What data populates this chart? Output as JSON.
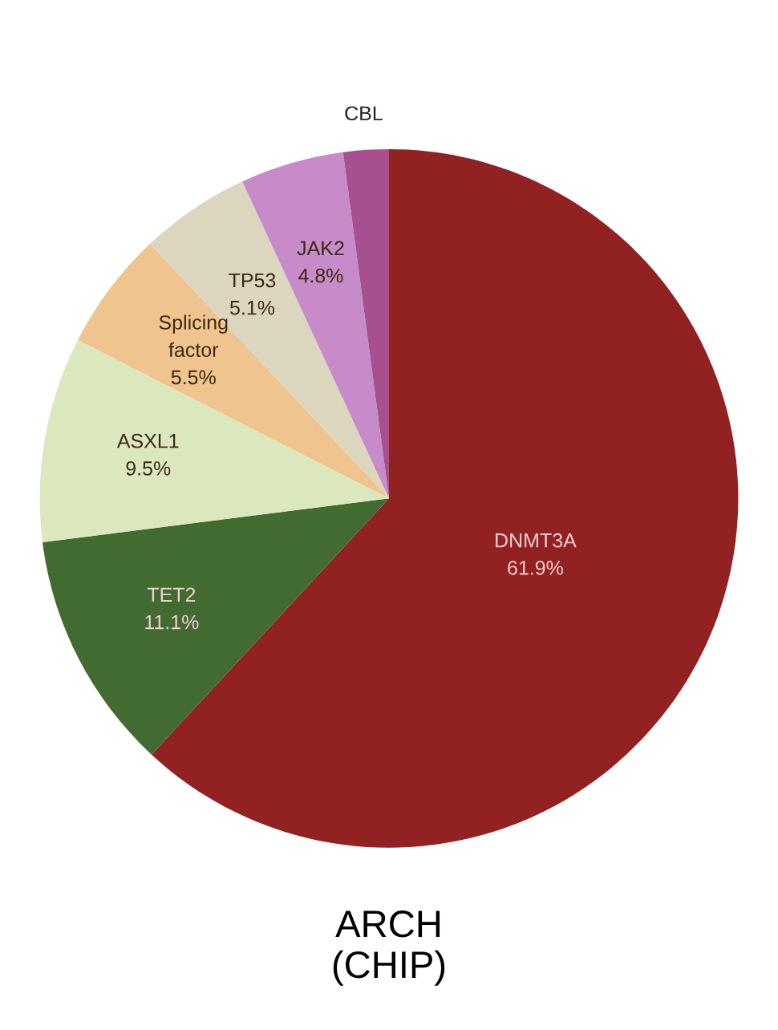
{
  "chart_data": {
    "type": "pie",
    "title": "ARCH\n(CHIP)",
    "categories": [
      "DNMT3A",
      "TET2",
      "ASXL1",
      "Splicing\nfactor",
      "TP53",
      "JAK2",
      "CBL"
    ],
    "values": [
      61.9,
      11.1,
      9.5,
      5.5,
      5.1,
      4.8,
      2.1
    ],
    "value_labels": [
      "61.9%",
      "11.1%",
      "9.5%",
      "5.5%",
      "5.1%",
      "4.8%",
      null
    ],
    "colors": [
      "#922222",
      "#426b32",
      "#dbe8bd",
      "#efc48e",
      "#ddd6bf",
      "#c68bc8",
      "#a8508f"
    ]
  }
}
